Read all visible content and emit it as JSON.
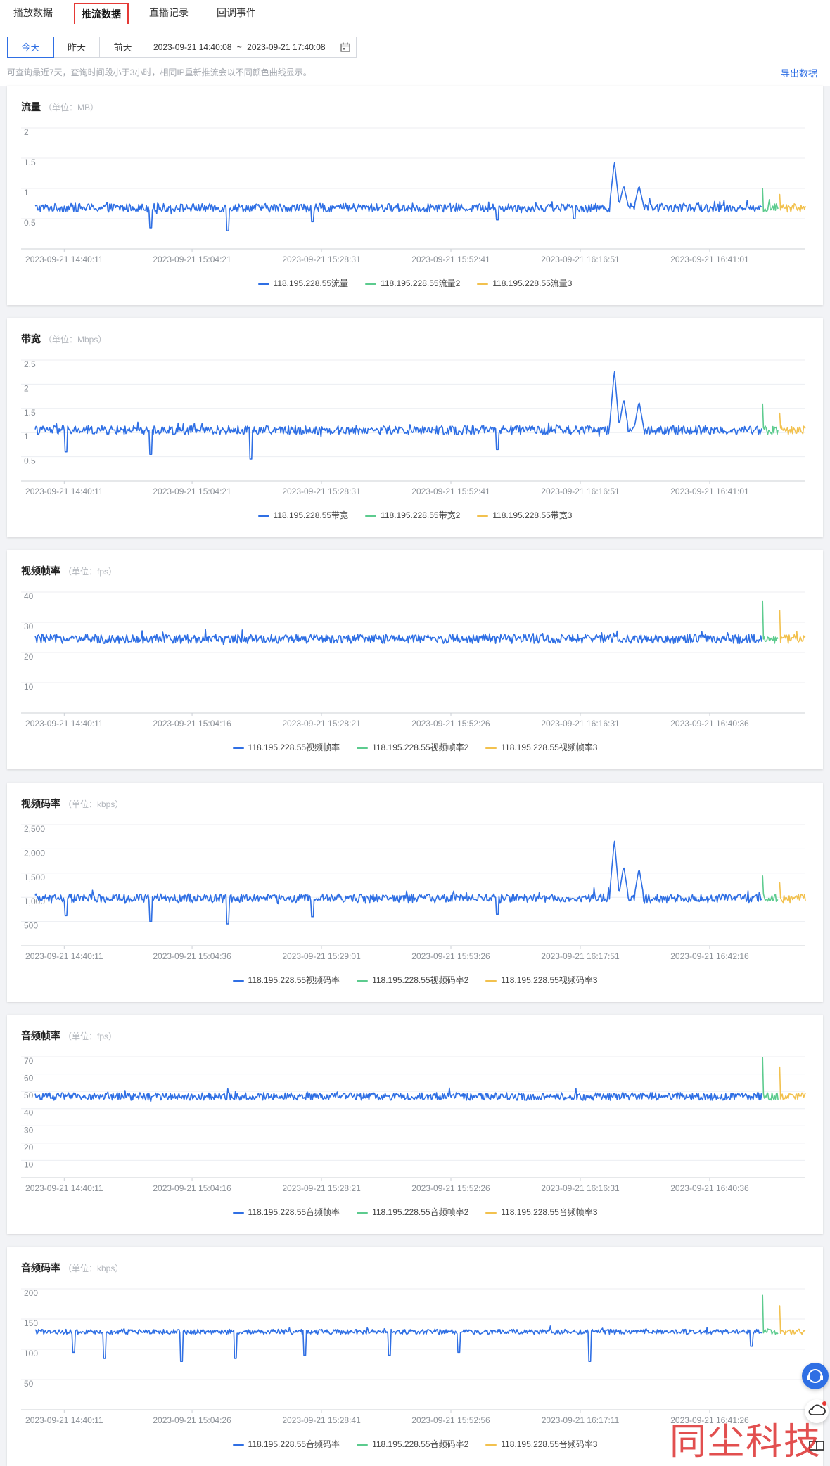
{
  "tabs": [
    {
      "label": "播放数据"
    },
    {
      "label": "推流数据"
    },
    {
      "label": "直播记录"
    },
    {
      "label": "回调事件"
    }
  ],
  "active_tab": "推流数据",
  "toolbar": {
    "day_buttons": [
      "今天",
      "昨天",
      "前天"
    ],
    "active_day": "今天",
    "range_start": "2023-09-21 14:40:08",
    "range_sep": "~",
    "range_end": "2023-09-21 17:40:08",
    "hint": "可查询最近7天，查询时间段小于3小时，相同IP重新推流会以不同颜色曲线显示。",
    "export_label": "导出数据"
  },
  "colors": {
    "series1": "#2f6fe4",
    "series2": "#5ccb8e",
    "series3": "#f2c14e",
    "accent": "#2f6fe4"
  },
  "watermark": "同尘科技",
  "chart_data": [
    {
      "type": "line",
      "title": "流量",
      "unit": "（单位：MB）",
      "ylim": [
        0,
        2
      ],
      "yticks": [
        "2",
        "1.5",
        "1",
        "0.5"
      ],
      "ytick_values": [
        2,
        1.5,
        1,
        0.5
      ],
      "x_tick_labels": [
        "2023-09-21 14:40:11",
        "2023-09-21 15:04:21",
        "2023-09-21 15:28:31",
        "2023-09-21 15:52:41",
        "2023-09-21 16:16:51",
        "2023-09-21 16:41:01"
      ],
      "grid": true,
      "legend": "bottom",
      "baseline": 0.68,
      "noise": 0.07,
      "dips": [
        [
          0.15,
          0.35
        ],
        [
          0.25,
          0.3
        ],
        [
          0.36,
          0.45
        ],
        [
          0.6,
          0.48
        ],
        [
          0.7,
          0.5
        ]
      ],
      "spikes": [
        [
          0.752,
          1.45
        ],
        [
          0.764,
          1.05
        ],
        [
          0.784,
          1.05
        ]
      ],
      "s2_peak": 1.0,
      "s3_peak": 0.9,
      "series": [
        {
          "name": "118.195.228.55流量"
        },
        {
          "name": "118.195.228.55流量2"
        },
        {
          "name": "118.195.228.55流量3"
        }
      ]
    },
    {
      "type": "line",
      "title": "带宽",
      "unit": "（单位：Mbps）",
      "ylim": [
        0,
        2.5
      ],
      "yticks": [
        "2.5",
        "2",
        "1.5",
        "1",
        "0.5"
      ],
      "ytick_values": [
        2.5,
        2,
        1.5,
        1,
        0.5
      ],
      "x_tick_labels": [
        "2023-09-21 14:40:11",
        "2023-09-21 15:04:21",
        "2023-09-21 15:28:31",
        "2023-09-21 15:52:41",
        "2023-09-21 16:16:51",
        "2023-09-21 16:41:01"
      ],
      "grid": true,
      "legend": "bottom",
      "baseline": 1.05,
      "noise": 0.09,
      "dips": [
        [
          0.04,
          0.6
        ],
        [
          0.15,
          0.55
        ],
        [
          0.28,
          0.45
        ],
        [
          0.6,
          0.65
        ]
      ],
      "spikes": [
        [
          0.752,
          2.3
        ],
        [
          0.764,
          1.7
        ],
        [
          0.784,
          1.65
        ]
      ],
      "s2_peak": 1.6,
      "s3_peak": 1.4,
      "series": [
        {
          "name": "118.195.228.55带宽"
        },
        {
          "name": "118.195.228.55带宽2"
        },
        {
          "name": "118.195.228.55带宽3"
        }
      ]
    },
    {
      "type": "line",
      "title": "视频帧率",
      "unit": "（单位：fps）",
      "ylim": [
        0,
        40
      ],
      "yticks": [
        "40",
        "30",
        "20",
        "10"
      ],
      "ytick_values": [
        40,
        30,
        20,
        10
      ],
      "x_tick_labels": [
        "2023-09-21 14:40:11",
        "2023-09-21 15:04:16",
        "2023-09-21 15:28:21",
        "2023-09-21 15:52:26",
        "2023-09-21 16:16:31",
        "2023-09-21 16:40:36"
      ],
      "grid": true,
      "legend": "bottom",
      "baseline": 24.5,
      "noise": 1.5,
      "dips": [],
      "spikes": [],
      "s2_peak": 37,
      "s3_peak": 34,
      "series": [
        {
          "name": "118.195.228.55视频帧率"
        },
        {
          "name": "118.195.228.55视频帧率2"
        },
        {
          "name": "118.195.228.55视频帧率3"
        }
      ]
    },
    {
      "type": "line",
      "title": "视频码率",
      "unit": "（单位：kbps）",
      "ylim": [
        0,
        2500
      ],
      "yticks": [
        "2,500",
        "2,000",
        "1,500",
        "1,000",
        "500"
      ],
      "ytick_values": [
        2500,
        2000,
        1500,
        1000,
        500
      ],
      "x_tick_labels": [
        "2023-09-21 14:40:11",
        "2023-09-21 15:04:36",
        "2023-09-21 15:29:01",
        "2023-09-21 15:53:26",
        "2023-09-21 16:17:51",
        "2023-09-21 16:42:16"
      ],
      "grid": true,
      "legend": "bottom",
      "baseline": 980,
      "noise": 90,
      "dips": [
        [
          0.04,
          620
        ],
        [
          0.15,
          500
        ],
        [
          0.25,
          450
        ],
        [
          0.36,
          600
        ],
        [
          0.6,
          650
        ]
      ],
      "spikes": [
        [
          0.752,
          2200
        ],
        [
          0.764,
          1650
        ],
        [
          0.784,
          1600
        ]
      ],
      "s2_peak": 1450,
      "s3_peak": 1300,
      "series": [
        {
          "name": "118.195.228.55视频码率"
        },
        {
          "name": "118.195.228.55视频码率2"
        },
        {
          "name": "118.195.228.55视频码率3"
        }
      ]
    },
    {
      "type": "line",
      "title": "音频帧率",
      "unit": "（单位：fps）",
      "ylim": [
        0,
        70
      ],
      "yticks": [
        "70",
        "60",
        "50",
        "40",
        "30",
        "20",
        "10"
      ],
      "ytick_values": [
        70,
        60,
        50,
        40,
        30,
        20,
        10
      ],
      "x_tick_labels": [
        "2023-09-21 14:40:11",
        "2023-09-21 15:04:16",
        "2023-09-21 15:28:21",
        "2023-09-21 15:52:26",
        "2023-09-21 16:16:31",
        "2023-09-21 16:40:36"
      ],
      "grid": true,
      "legend": "bottom",
      "baseline": 47,
      "noise": 2.2,
      "dips": [],
      "spikes": [],
      "s2_peak": 70,
      "s3_peak": 64,
      "series": [
        {
          "name": "118.195.228.55音频帧率"
        },
        {
          "name": "118.195.228.55音频帧率2"
        },
        {
          "name": "118.195.228.55音频帧率3"
        }
      ]
    },
    {
      "type": "line",
      "title": "音频码率",
      "unit": "（单位：kbps）",
      "ylim": [
        0,
        200
      ],
      "yticks": [
        "200",
        "150",
        "100",
        "50"
      ],
      "ytick_values": [
        200,
        150,
        100,
        50
      ],
      "x_tick_labels": [
        "2023-09-21 14:40:11",
        "2023-09-21 15:04:26",
        "2023-09-21 15:28:41",
        "2023-09-21 15:52:56",
        "2023-09-21 16:17:11",
        "2023-09-21 16:41:26"
      ],
      "grid": true,
      "legend": "bottom",
      "baseline": 129,
      "noise": 4,
      "dips": [
        [
          0.05,
          95
        ],
        [
          0.09,
          85
        ],
        [
          0.19,
          80
        ],
        [
          0.26,
          85
        ],
        [
          0.35,
          90
        ],
        [
          0.46,
          90
        ],
        [
          0.55,
          95
        ],
        [
          0.72,
          80
        ],
        [
          0.93,
          105
        ]
      ],
      "spikes": [],
      "s2_peak": 190,
      "s3_peak": 172,
      "series": [
        {
          "name": "118.195.228.55音频码率"
        },
        {
          "name": "118.195.228.55音频码率2"
        },
        {
          "name": "118.195.228.55音频码率3"
        }
      ]
    }
  ]
}
